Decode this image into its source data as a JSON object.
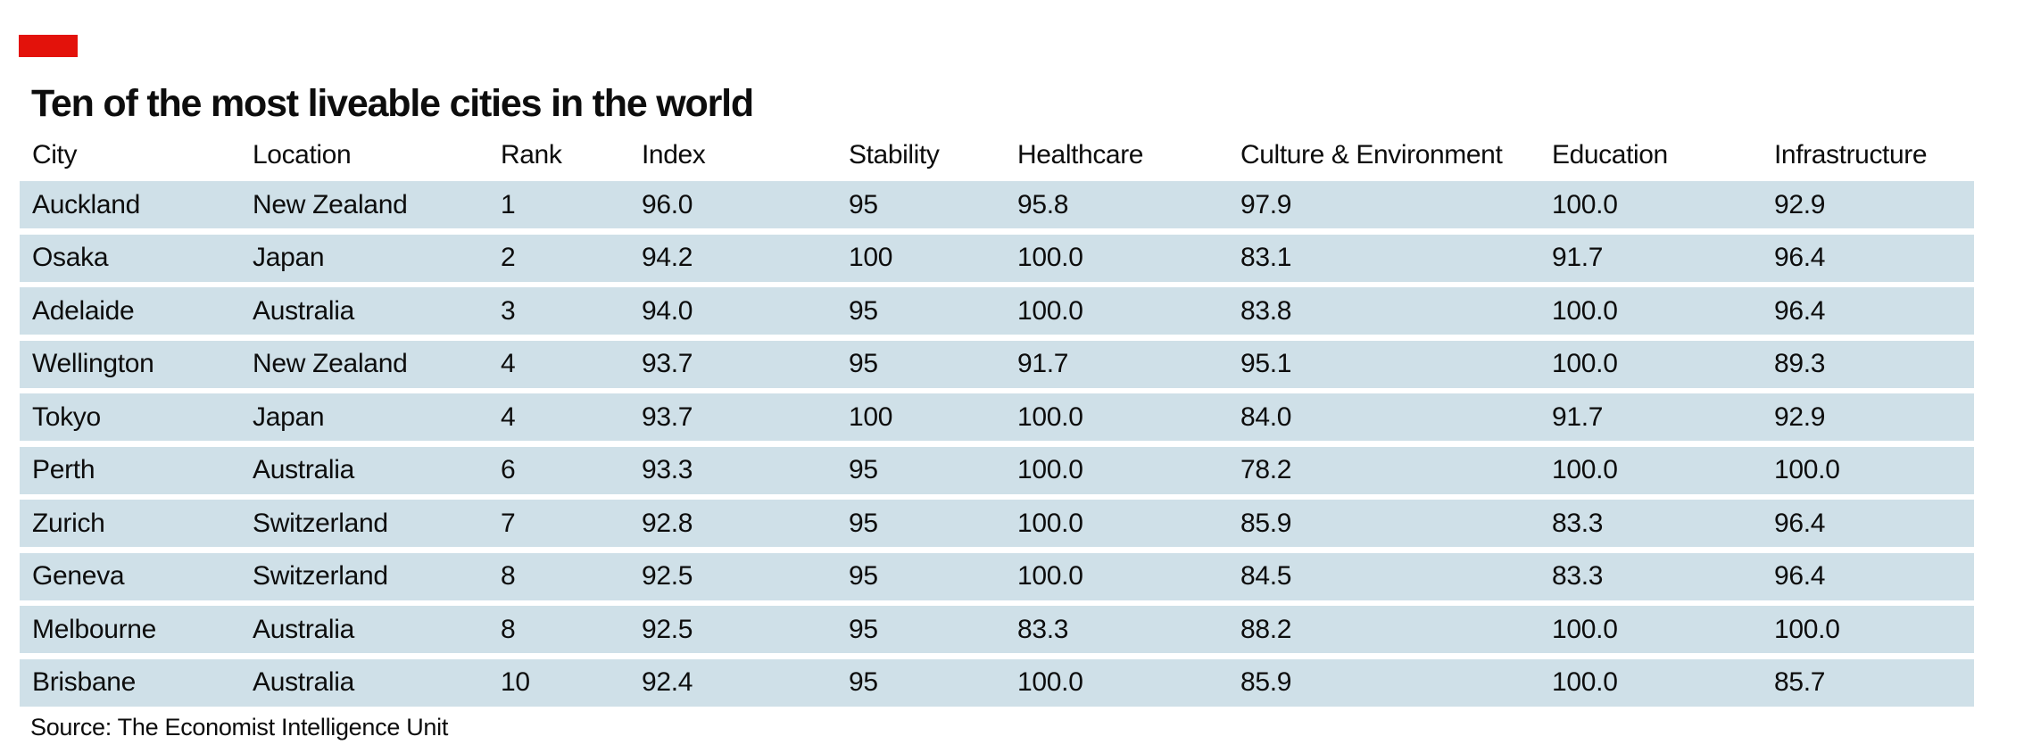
{
  "chart_data": {
    "type": "table",
    "title": "Ten of the most liveable cities in the world",
    "source": "Source: The Economist Intelligence Unit",
    "columns": [
      "City",
      "Location",
      "Rank",
      "Index",
      "Stability",
      "Healthcare",
      "Culture & Environment",
      "Education",
      "Infrastructure"
    ],
    "rows": [
      [
        "Auckland",
        "New Zealand",
        "1",
        "96.0",
        "95",
        "95.8",
        "97.9",
        "100.0",
        "92.9"
      ],
      [
        "Osaka",
        "Japan",
        "2",
        "94.2",
        "100",
        "100.0",
        "83.1",
        "91.7",
        "96.4"
      ],
      [
        "Adelaide",
        "Australia",
        "3",
        "94.0",
        "95",
        "100.0",
        "83.8",
        "100.0",
        "96.4"
      ],
      [
        "Wellington",
        "New Zealand",
        "4",
        "93.7",
        "95",
        "91.7",
        "95.1",
        "100.0",
        "89.3"
      ],
      [
        "Tokyo",
        "Japan",
        "4",
        "93.7",
        "100",
        "100.0",
        "84.0",
        "91.7",
        "92.9"
      ],
      [
        "Perth",
        "Australia",
        "6",
        "93.3",
        "95",
        "100.0",
        "78.2",
        "100.0",
        "100.0"
      ],
      [
        "Zurich",
        "Switzerland",
        "7",
        "92.8",
        "95",
        "100.0",
        "85.9",
        "83.3",
        "96.4"
      ],
      [
        "Geneva",
        "Switzerland",
        "8",
        "92.5",
        "95",
        "100.0",
        "84.5",
        "83.3",
        "96.4"
      ],
      [
        "Melbourne",
        "Australia",
        "8",
        "92.5",
        "95",
        "83.3",
        "88.2",
        "100.0",
        "100.0"
      ],
      [
        "Brisbane",
        "Australia",
        "10",
        "92.4",
        "95",
        "100.0",
        "85.9",
        "100.0",
        "85.7"
      ]
    ],
    "colors": {
      "brand_red": "#e3120b",
      "row_band": "#cfe0e8",
      "text": "#0d0d0d",
      "background": "#ffffff"
    },
    "layout_hints": {
      "banded_rows": true,
      "column_alignment": "left",
      "grid": "off",
      "legend": "none"
    }
  }
}
